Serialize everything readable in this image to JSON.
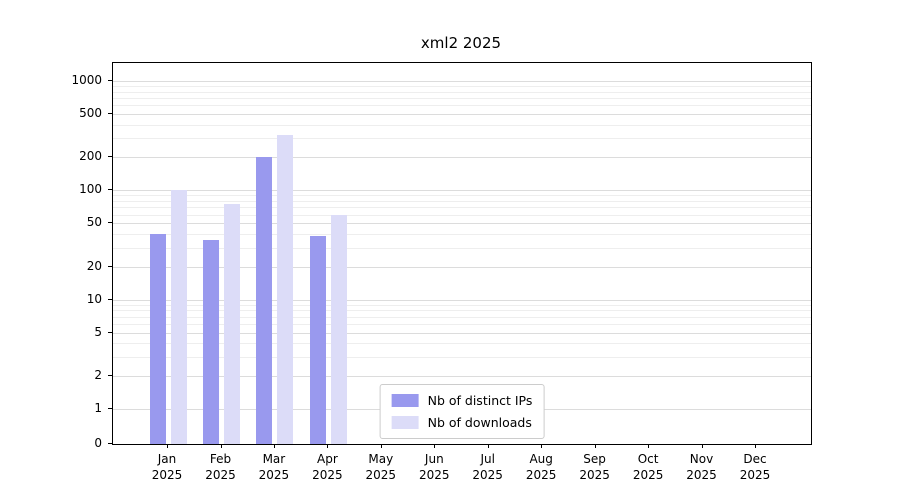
{
  "chart_data": {
    "type": "bar",
    "title": "xml2 2025",
    "categories": [
      "Jan",
      "Feb",
      "Mar",
      "Apr",
      "May",
      "Jun",
      "Jul",
      "Aug",
      "Sep",
      "Oct",
      "Nov",
      "Dec"
    ],
    "x_year_label": "2025",
    "series": [
      {
        "name": "Nb of distinct IPs",
        "color": "#9999ee",
        "values": [
          40,
          35,
          200,
          38,
          0,
          0,
          0,
          0,
          0,
          0,
          0,
          0
        ]
      },
      {
        "name": "Nb of downloads",
        "color": "#dcdcf8",
        "values": [
          100,
          75,
          320,
          60,
          0,
          0,
          0,
          0,
          0,
          0,
          0,
          0
        ]
      }
    ],
    "yscale": "log",
    "yticks": [
      0,
      1,
      2,
      5,
      10,
      20,
      50,
      100,
      200,
      500,
      1000
    ],
    "minor_gridline_values": [
      3,
      4,
      6,
      7,
      8,
      9,
      30,
      40,
      60,
      70,
      80,
      90,
      300,
      400,
      600,
      700,
      800,
      900
    ],
    "ylim": [
      0,
      1500
    ],
    "grid": true,
    "legend_position": "lower center"
  }
}
